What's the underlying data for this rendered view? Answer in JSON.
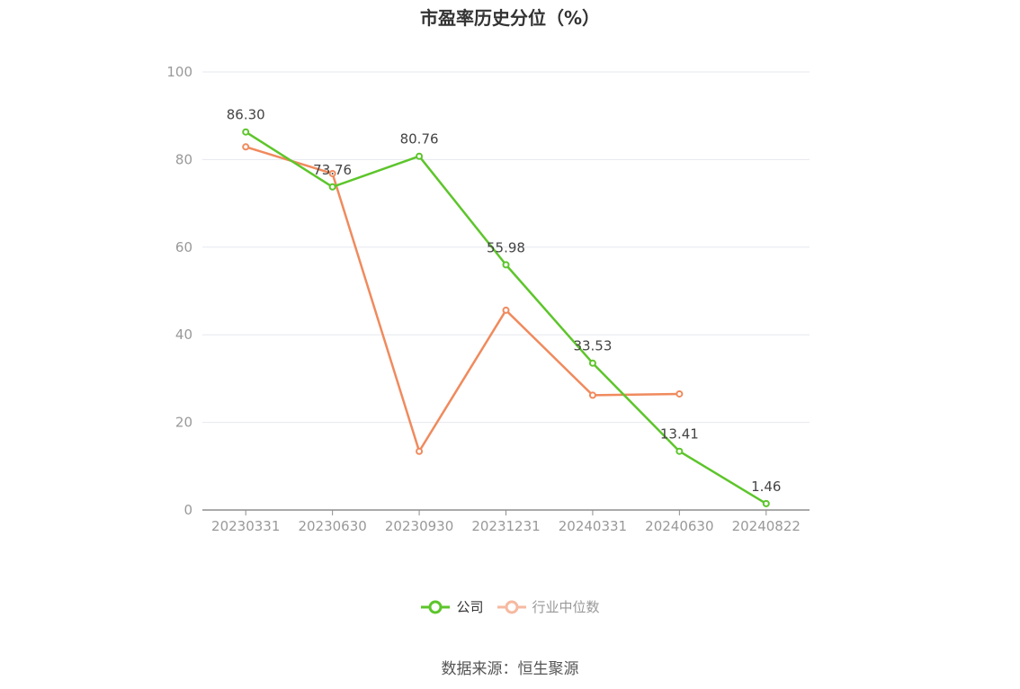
{
  "title": "市盈率历史分位（%）",
  "source": "数据来源：恒生聚源",
  "colors": {
    "company": "#5dc52b",
    "industry": "#f08a5d",
    "industry_legend": "#f6b9a0",
    "grid": "#e6e8ef",
    "axis": "#8e8e8e",
    "tick_text": "#999999"
  },
  "chart_data": {
    "type": "line",
    "title": "市盈率历史分位（%）",
    "xlabel": "",
    "ylabel": "",
    "categories": [
      "20230331",
      "20230630",
      "20230930",
      "20231231",
      "20240331",
      "20240630",
      "20240822"
    ],
    "ylim": [
      0,
      100
    ],
    "yticks": [
      0,
      20,
      40,
      60,
      80,
      100
    ],
    "grid": true,
    "legend_position": "bottom",
    "series": [
      {
        "name": "公司",
        "values": [
          86.3,
          73.76,
          80.76,
          55.98,
          33.53,
          13.41,
          1.46
        ],
        "labels": [
          "86.30",
          "73.76",
          "80.76",
          "55.98",
          "33.53",
          "13.41",
          "1.46"
        ]
      },
      {
        "name": "行业中位数",
        "values": [
          82.9,
          76.8,
          13.4,
          45.6,
          26.2,
          26.5,
          null
        ]
      }
    ]
  }
}
